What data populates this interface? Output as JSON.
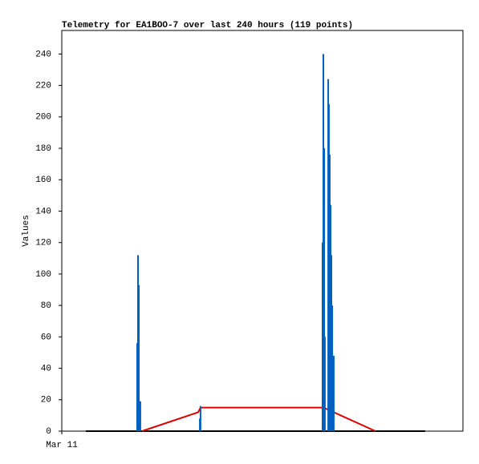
{
  "chart_data": {
    "type": "line",
    "title": "Telemetry for EA1BOO-7 over last 240 hours (119 points)",
    "ylabel": "Values",
    "xlim": [
      0,
      240
    ],
    "xticks": [
      {
        "value": 0,
        "label": "Mar 11"
      }
    ],
    "ylim": [
      0,
      255
    ],
    "yticks": [
      0,
      20,
      40,
      60,
      80,
      100,
      120,
      140,
      160,
      180,
      200,
      220,
      240
    ],
    "series": [
      {
        "color": "#000000",
        "mode": "line",
        "x": [
          14.4,
          217.4
        ],
        "values": [
          0,
          0
        ]
      },
      {
        "color": "#e00000",
        "mode": "line",
        "x": [
          48,
          81.6,
          83,
          156.5,
          187.7
        ],
        "values": [
          0,
          12,
          15,
          15,
          0
        ]
      },
      {
        "color": "#0060c0",
        "mode": "impulses",
        "x": [
          45.1,
          45.6,
          46.1,
          47,
          82.6,
          83,
          156,
          156.5,
          157,
          157.4,
          159.4,
          159.8,
          160.3,
          160.8,
          161.3,
          161.8,
          162.7
        ],
        "values": [
          56,
          112,
          93,
          19,
          8,
          16,
          120,
          240,
          180,
          60,
          224,
          208,
          176,
          144,
          112,
          80,
          48
        ]
      }
    ]
  }
}
